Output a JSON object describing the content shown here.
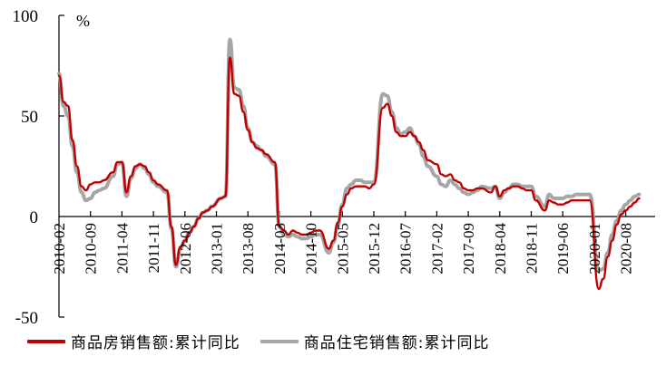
{
  "chart_data": {
    "type": "line",
    "title": "",
    "xlabel": "",
    "ylabel": "%",
    "ylim": [
      -50,
      100
    ],
    "yticks": [
      100,
      50,
      0,
      -50
    ],
    "grid": false,
    "legend_position": "bottom",
    "x_tick_labels": [
      "2010-02",
      "2010-09",
      "2011-04",
      "2011-11",
      "2012-06",
      "2013-01",
      "2013-08",
      "2014-03",
      "2014-10",
      "2015-05",
      "2015-12",
      "2016-07",
      "2017-02",
      "2017-09",
      "2018-04",
      "2018-11",
      "2019-06",
      "2020-01",
      "2020-08"
    ],
    "x": [
      "2010-02",
      "2010-03",
      "2010-04",
      "2010-05",
      "2010-06",
      "2010-07",
      "2010-08",
      "2010-09",
      "2010-10",
      "2010-11",
      "2010-12",
      "2011-02",
      "2011-03",
      "2011-04",
      "2011-05",
      "2011-06",
      "2011-07",
      "2011-08",
      "2011-09",
      "2011-10",
      "2011-11",
      "2011-12",
      "2012-02",
      "2012-03",
      "2012-04",
      "2012-05",
      "2012-06",
      "2012-07",
      "2012-08",
      "2012-09",
      "2012-10",
      "2012-11",
      "2012-12",
      "2013-02",
      "2013-03",
      "2013-04",
      "2013-05",
      "2013-06",
      "2013-07",
      "2013-08",
      "2013-09",
      "2013-10",
      "2013-11",
      "2013-12",
      "2014-02",
      "2014-03",
      "2014-04",
      "2014-05",
      "2014-06",
      "2014-07",
      "2014-08",
      "2014-09",
      "2014-10",
      "2014-11",
      "2014-12",
      "2015-02",
      "2015-03",
      "2015-04",
      "2015-05",
      "2015-06",
      "2015-07",
      "2015-08",
      "2015-09",
      "2015-10",
      "2015-11",
      "2015-12",
      "2016-02",
      "2016-03",
      "2016-04",
      "2016-05",
      "2016-06",
      "2016-07",
      "2016-08",
      "2016-09",
      "2016-10",
      "2016-11",
      "2016-12",
      "2017-02",
      "2017-03",
      "2017-04",
      "2017-05",
      "2017-06",
      "2017-07",
      "2017-08",
      "2017-09",
      "2017-10",
      "2017-11",
      "2017-12",
      "2018-02",
      "2018-03",
      "2018-04",
      "2018-05",
      "2018-06",
      "2018-07",
      "2018-08",
      "2018-09",
      "2018-10",
      "2018-11",
      "2018-12",
      "2019-02",
      "2019-03",
      "2019-04",
      "2019-05",
      "2019-06",
      "2019-07",
      "2019-08",
      "2019-09",
      "2019-10",
      "2019-11",
      "2019-12",
      "2020-02",
      "2020-03",
      "2020-04",
      "2020-05",
      "2020-06",
      "2020-07",
      "2020-08",
      "2020-09",
      "2020-10",
      "2020-11"
    ],
    "series": [
      {
        "name": "商品房销售额:累计同比",
        "color": "#c00000",
        "values": [
          70,
          57,
          55,
          38,
          25,
          15,
          13,
          16,
          17,
          17,
          18,
          22,
          27,
          27,
          12,
          20,
          25,
          26,
          25,
          22,
          18,
          16,
          13,
          -5,
          -24,
          -15,
          -12,
          -8,
          -5,
          -1,
          2,
          3,
          5,
          9,
          10,
          79,
          61,
          60,
          52,
          43,
          37,
          34,
          33,
          31,
          27,
          -5,
          -7,
          -9,
          -7,
          -8,
          -9,
          -9,
          -8,
          -7,
          -7,
          -16,
          -12,
          -3,
          5,
          11,
          14,
          15,
          15,
          15,
          14,
          16,
          54,
          56,
          50,
          42,
          40,
          40,
          42,
          40,
          37,
          33,
          28,
          26,
          21,
          20,
          21,
          18,
          17,
          14,
          13,
          13,
          14,
          14,
          12,
          15,
          10,
          13,
          14,
          15,
          15,
          14,
          13,
          13,
          8,
          3,
          8,
          7,
          6,
          6,
          7,
          8,
          8,
          8,
          8,
          8,
          -36,
          -31,
          -20,
          -12,
          -4,
          1,
          3,
          5,
          7,
          9
        ]
      },
      {
        "name": "商品住宅销售额:累计同比",
        "color": "#a6a6a6",
        "values": [
          71,
          55,
          50,
          35,
          22,
          12,
          8,
          9,
          12,
          13,
          14,
          20,
          26,
          27,
          10,
          19,
          24,
          26,
          24,
          21,
          17,
          15,
          12,
          -6,
          -25,
          -16,
          -12,
          -8,
          -5,
          -1,
          2,
          3,
          5,
          9,
          10,
          88,
          64,
          63,
          55,
          44,
          37,
          35,
          33,
          30,
          26,
          -5,
          -9,
          -10,
          -9,
          -10,
          -11,
          -11,
          -10,
          -9,
          -9,
          -18,
          -13,
          -4,
          6,
          14,
          16,
          18,
          18,
          17,
          17,
          17,
          61,
          60,
          52,
          44,
          41,
          42,
          44,
          40,
          36,
          30,
          25,
          20,
          16,
          15,
          18,
          16,
          14,
          12,
          11,
          12,
          13,
          15,
          14,
          15,
          9,
          12,
          14,
          16,
          16,
          15,
          15,
          15,
          10,
          5,
          11,
          9,
          9,
          9,
          10,
          10,
          11,
          11,
          11,
          11,
          -27,
          -26,
          -18,
          -9,
          -2,
          3,
          6,
          8,
          10,
          11
        ]
      }
    ]
  },
  "axis": {
    "unit_label": "%",
    "y_labels": [
      "100",
      "50",
      "0",
      "-50"
    ]
  },
  "legend": [
    {
      "label": "商品房销售额:累计同比",
      "color": "#c00000"
    },
    {
      "label": "商品住宅销售额:累计同比",
      "color": "#a6a6a6"
    }
  ]
}
